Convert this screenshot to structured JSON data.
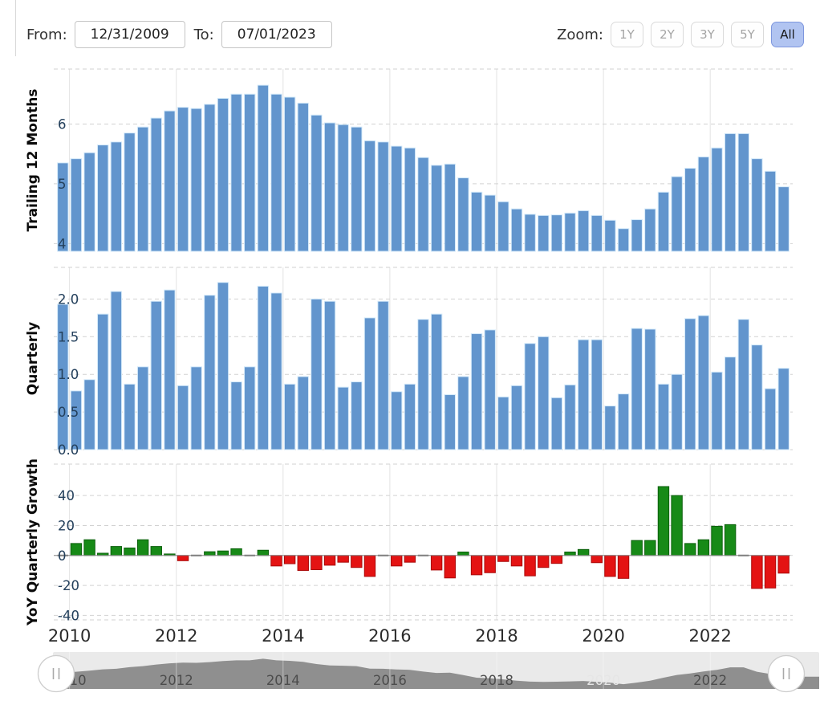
{
  "toolbar": {
    "from_label": "From:",
    "from_value": "12/31/2009",
    "to_label": "To:",
    "to_value": "07/01/2023",
    "zoom_label": "Zoom:",
    "zoom_buttons": [
      {
        "label": "1Y",
        "active": false
      },
      {
        "label": "2Y",
        "active": false
      },
      {
        "label": "3Y",
        "active": false
      },
      {
        "label": "5Y",
        "active": false
      },
      {
        "label": "All",
        "active": true
      }
    ]
  },
  "colors": {
    "bar_blue": "#6295cd",
    "bar_blue_edge": "#d4eafa",
    "pos_green": "#178a17",
    "pos_green_edge": "#0d600d",
    "neg_red": "#e41313",
    "neg_red_edge": "#a90909",
    "dash_gray": "#6e6e6e",
    "tick_label": "#24405c",
    "axis_title": "#0a0a0a",
    "x_label": "#2b2b2b",
    "grid_dash": "#d2d2d2",
    "year_line": "#e3e3e3",
    "zero_line": "#8a8a8a",
    "nav_track": "#eaeaea",
    "nav_area": "#8f8f8f",
    "nav_label_dark": "#4c4c4c",
    "nav_label_light": "#e6e6e6",
    "active_button_bg": "#b1c4f1"
  },
  "x_axis": {
    "tick_labels": [
      "2010",
      "2012",
      "2014",
      "2016",
      "2018",
      "2020",
      "2022"
    ],
    "tick_years": [
      2010,
      2012,
      2014,
      2016,
      2018,
      2020,
      2022
    ],
    "start_quarter": "Q4 2009",
    "end_quarter": "Q2 2023"
  },
  "chart_data": [
    {
      "type": "bar",
      "id": "trailing-12-months",
      "ylabel": "Trailing 12 Months",
      "ylim": [
        3.87,
        6.92
      ],
      "yticks": [
        {
          "v": 4,
          "label": "4"
        },
        {
          "v": 5,
          "label": "5"
        },
        {
          "v": 6,
          "label": "6"
        }
      ],
      "baseline": "panel-bottom",
      "values": [
        5.35,
        5.42,
        5.52,
        5.65,
        5.7,
        5.85,
        5.95,
        6.1,
        6.22,
        6.28,
        6.26,
        6.33,
        6.43,
        6.5,
        6.5,
        6.65,
        6.5,
        6.45,
        6.35,
        6.15,
        6.02,
        5.99,
        5.95,
        5.72,
        5.7,
        5.63,
        5.6,
        5.44,
        5.31,
        5.33,
        5.1,
        4.86,
        4.81,
        4.7,
        4.58,
        4.49,
        4.47,
        4.48,
        4.51,
        4.55,
        4.47,
        4.39,
        4.25,
        4.4,
        4.58,
        4.86,
        5.12,
        5.26,
        5.45,
        5.6,
        5.84,
        5.84,
        5.42,
        5.21,
        4.95
      ]
    },
    {
      "type": "bar",
      "id": "quarterly",
      "ylabel": "Quarterly",
      "ylim": [
        0,
        2.42
      ],
      "yticks": [
        {
          "v": 0,
          "label": "0.0"
        },
        {
          "v": 0.5,
          "label": "0.5"
        },
        {
          "v": 1.0,
          "label": "1.0"
        },
        {
          "v": 1.5,
          "label": "1.5"
        },
        {
          "v": 2.0,
          "label": "2.0"
        }
      ],
      "baseline": "zero",
      "values": [
        1.93,
        0.78,
        0.93,
        1.8,
        2.1,
        0.87,
        1.1,
        1.97,
        2.12,
        0.85,
        1.1,
        2.05,
        2.22,
        0.9,
        1.1,
        2.17,
        2.08,
        0.87,
        0.97,
        2.0,
        1.97,
        0.83,
        0.9,
        1.75,
        1.97,
        0.77,
        0.87,
        1.73,
        1.8,
        0.73,
        0.97,
        1.54,
        1.59,
        0.7,
        0.85,
        1.41,
        1.5,
        0.69,
        0.86,
        1.46,
        1.46,
        0.58,
        0.74,
        1.61,
        1.6,
        0.87,
        1.0,
        1.74,
        1.78,
        1.03,
        1.23,
        1.73,
        1.39,
        0.81,
        1.08
      ]
    },
    {
      "type": "bar",
      "id": "yoy-quarterly-growth",
      "ylabel": "YoY Quarterly Growth",
      "ylim": [
        -43,
        61
      ],
      "yticks": [
        {
          "v": -40,
          "label": "-40"
        },
        {
          "v": -20,
          "label": "-20"
        },
        {
          "v": 0,
          "label": "0"
        },
        {
          "v": 20,
          "label": "20"
        },
        {
          "v": 40,
          "label": "40"
        }
      ],
      "baseline": "zero",
      "diverging": true,
      "dash_threshold": 0.6,
      "values": [
        null,
        8,
        10.5,
        1.5,
        6,
        5,
        10.5,
        6,
        1,
        -3.5,
        0,
        2.5,
        3,
        4.5,
        0.5,
        3.5,
        -7,
        -5.5,
        -10,
        -9.5,
        -6.5,
        -4.5,
        -8,
        -14,
        0,
        -7,
        -4.5,
        0,
        -9.7,
        -15,
        2.3,
        -12.9,
        -11.5,
        -4,
        -7,
        -13.6,
        -8,
        -5.3,
        2.3,
        4,
        -4.8,
        -14,
        -15.3,
        10,
        10,
        46,
        40,
        8,
        10.5,
        19.5,
        20.6,
        -0.5,
        -22,
        -21.7,
        -11.8
      ]
    }
  ],
  "navigator": {
    "labels": [
      {
        "text": "2010",
        "year": 2010,
        "light": false
      },
      {
        "text": "2012",
        "year": 2012,
        "light": false
      },
      {
        "text": "2014",
        "year": 2014,
        "light": false
      },
      {
        "text": "2016",
        "year": 2016,
        "light": false
      },
      {
        "text": "2018",
        "year": 2018,
        "light": false
      },
      {
        "text": "2020",
        "year": 2020,
        "light": true
      },
      {
        "text": "2022",
        "year": 2022,
        "light": false
      }
    ],
    "handle_glyph": "||"
  }
}
